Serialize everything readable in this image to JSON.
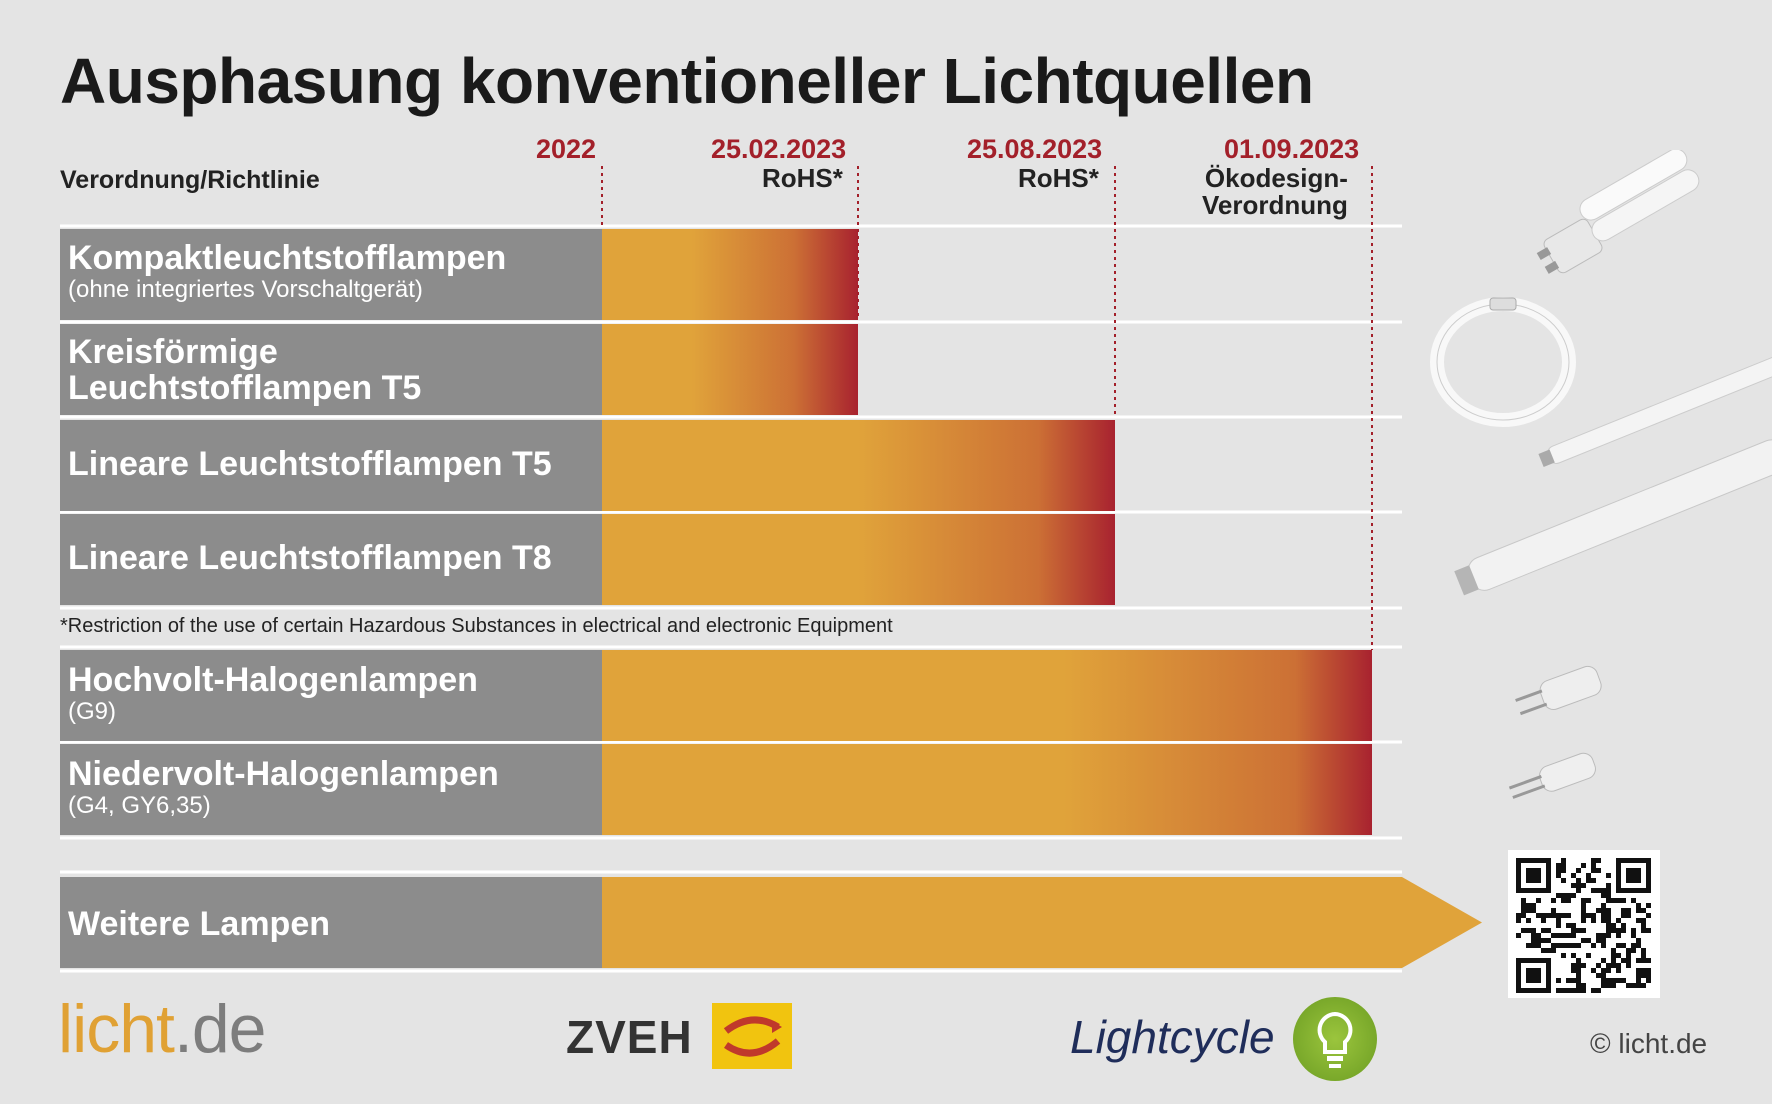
{
  "title": "Ausphasung konventioneller Lichtquellen",
  "header": {
    "regulation_label": "Verordnung/Richtlinie",
    "milestones": [
      {
        "date": "2022",
        "regulation": ""
      },
      {
        "date": "25.02.2023",
        "regulation": "RoHS*"
      },
      {
        "date": "25.08.2023",
        "regulation": "RoHS*"
      },
      {
        "date": "01.09.2023",
        "regulation": "Ökodesign-\nVerordnung"
      }
    ]
  },
  "chart_data": {
    "type": "bar",
    "orientation": "horizontal",
    "title": "Ausphasung konventioneller Lichtquellen",
    "x_axis": "timeline",
    "x_ticks": [
      "2022",
      "25.02.2023",
      "25.08.2023",
      "01.09.2023"
    ],
    "series": [
      {
        "category": "Kompaktleuchtstofflampen",
        "note": "(ohne integriertes Vorschaltgerät)",
        "start": "2022",
        "end": "25.02.2023"
      },
      {
        "category": "Kreisförmige Leuchtstofflampen T5",
        "note": "",
        "start": "2022",
        "end": "25.02.2023"
      },
      {
        "category": "Lineare Leuchtstofflampen T5",
        "note": "",
        "start": "2022",
        "end": "25.08.2023"
      },
      {
        "category": "Lineare Leuchtstofflampen T8",
        "note": "",
        "start": "2022",
        "end": "25.08.2023"
      },
      {
        "category": "Hochvolt-Halogenlampen",
        "note": "(G9)",
        "start": "2022",
        "end": "01.09.2023"
      },
      {
        "category": "Niedervolt-Halogenlampen",
        "note": "(G4, GY6,35)",
        "start": "2022",
        "end": "01.09.2023"
      },
      {
        "category": "Weitere Lampen",
        "note": "",
        "start": "2022",
        "end": "open-ended"
      }
    ],
    "colors": {
      "bar_start": "#e0a33a",
      "bar_end": "#a8222f",
      "label_bg": "#8c8c8c",
      "marker": "#a3202a"
    }
  },
  "rows": [
    {
      "main": "Kompaktleuchtstofflampen",
      "sub": "(ohne integriertes Vorschaltgerät)"
    },
    {
      "main": "Kreisförmige",
      "main2": "Leuchtstofflampen T5"
    },
    {
      "main": "Lineare Leuchtstofflampen T5"
    },
    {
      "main": "Lineare Leuchtstofflampen T8"
    },
    {
      "main": "Hochvolt-Halogenlampen",
      "sub": "(G9)"
    },
    {
      "main": "Niedervolt-Halogenlampen",
      "sub": "(G4, GY6,35)"
    },
    {
      "main": "Weitere Lampen"
    }
  ],
  "footnote": "*Restriction of the use of certain Hazardous Substances in electrical and electronic Equipment",
  "logos": {
    "licht_a": "licht",
    "licht_b": ".de",
    "zveh": "ZVEH",
    "lightcycle": "Lightcycle"
  },
  "copyright": "© licht.de",
  "icons": [
    "compact-lamp-icon",
    "circular-lamp-icon",
    "t5-tube-icon",
    "t8-tube-icon",
    "g9-halogen-icon",
    "g4-halogen-icon",
    "qr-code-icon"
  ]
}
